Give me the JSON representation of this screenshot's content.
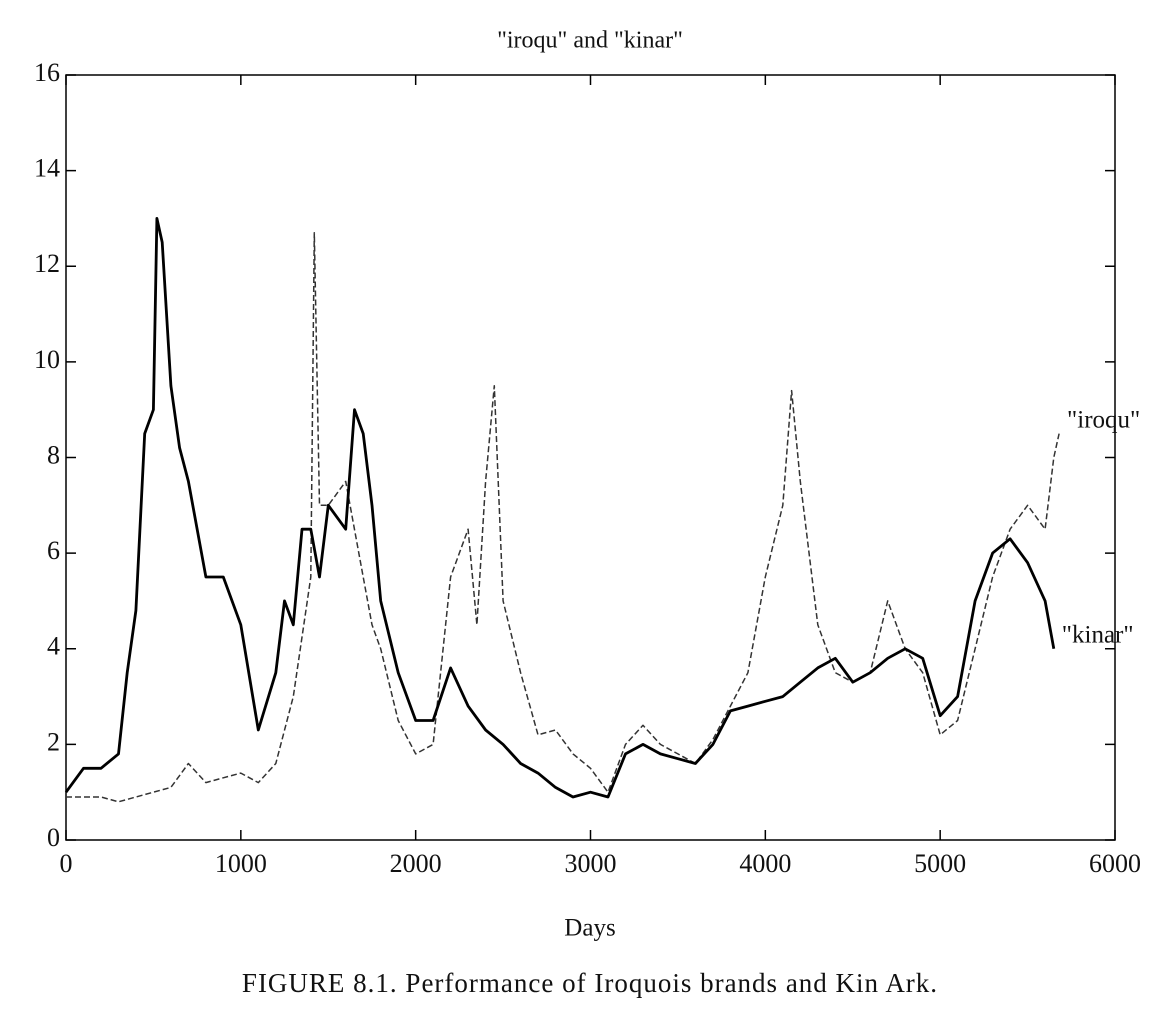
{
  "chart_data": {
    "type": "line",
    "title": "\"iroqu\" and \"kinar\"",
    "xlabel": "Days",
    "caption": "FIGURE 8.1. Performance of Iroquois brands and Kin Ark.",
    "xlim": [
      0,
      6000
    ],
    "xticks": [
      0,
      1000,
      2000,
      3000,
      4000,
      5000,
      6000
    ],
    "ylim": [
      0,
      16
    ],
    "yticks": [
      0,
      2,
      4,
      6,
      8,
      10,
      12,
      14,
      16
    ],
    "grid": false,
    "series": [
      {
        "name": "\"iroqu\"",
        "color": "#333333",
        "line_style": "dashed",
        "x": [
          0,
          100,
          200,
          300,
          400,
          500,
          600,
          700,
          800,
          900,
          1000,
          1100,
          1200,
          1300,
          1400,
          1420,
          1450,
          1500,
          1600,
          1700,
          1750,
          1800,
          1900,
          2000,
          2100,
          2200,
          2300,
          2350,
          2400,
          2450,
          2500,
          2600,
          2700,
          2800,
          2900,
          3000,
          3100,
          3200,
          3300,
          3400,
          3500,
          3600,
          3700,
          3800,
          3900,
          4000,
          4100,
          4150,
          4200,
          4300,
          4400,
          4500,
          4600,
          4700,
          4800,
          4900,
          5000,
          5100,
          5200,
          5300,
          5400,
          5500,
          5600,
          5650,
          5680
        ],
        "values": [
          0.9,
          0.9,
          0.9,
          0.8,
          0.9,
          1.0,
          1.1,
          1.6,
          1.2,
          1.3,
          1.4,
          1.2,
          1.6,
          3.0,
          5.5,
          12.7,
          7.0,
          7.0,
          7.5,
          5.5,
          4.5,
          4.0,
          2.5,
          1.8,
          2.0,
          5.5,
          6.5,
          4.5,
          7.5,
          9.5,
          5.0,
          3.5,
          2.2,
          2.3,
          1.8,
          1.5,
          1.0,
          2.0,
          2.4,
          2.0,
          1.8,
          1.6,
          2.1,
          2.8,
          3.5,
          5.5,
          7.0,
          9.4,
          7.5,
          4.5,
          3.5,
          3.3,
          3.5,
          5.0,
          4.0,
          3.5,
          2.2,
          2.5,
          4.0,
          5.5,
          6.5,
          7.0,
          6.5,
          8.0,
          8.5
        ]
      },
      {
        "name": "\"kinar\"",
        "color": "#000000",
        "line_style": "solid",
        "x": [
          0,
          100,
          200,
          300,
          350,
          400,
          450,
          500,
          520,
          550,
          600,
          650,
          700,
          800,
          900,
          1000,
          1100,
          1200,
          1250,
          1300,
          1350,
          1400,
          1450,
          1500,
          1600,
          1650,
          1700,
          1750,
          1800,
          1900,
          2000,
          2100,
          2200,
          2300,
          2400,
          2500,
          2600,
          2700,
          2800,
          2900,
          3000,
          3100,
          3200,
          3300,
          3400,
          3500,
          3600,
          3700,
          3800,
          3900,
          4000,
          4100,
          4200,
          4300,
          4400,
          4500,
          4600,
          4700,
          4800,
          4900,
          5000,
          5100,
          5200,
          5300,
          5400,
          5500,
          5600,
          5650
        ],
        "values": [
          1.0,
          1.5,
          1.5,
          1.8,
          3.5,
          4.8,
          8.5,
          9.0,
          13.0,
          12.5,
          9.5,
          8.2,
          7.5,
          5.5,
          5.5,
          4.5,
          2.3,
          3.5,
          5.0,
          4.5,
          6.5,
          6.5,
          5.5,
          7.0,
          6.5,
          9.0,
          8.5,
          7.0,
          5.0,
          3.5,
          2.5,
          2.5,
          3.6,
          2.8,
          2.3,
          2.0,
          1.6,
          1.4,
          1.1,
          0.9,
          1.0,
          0.9,
          1.8,
          2.0,
          1.8,
          1.7,
          1.6,
          2.0,
          2.7,
          2.8,
          2.9,
          3.0,
          3.3,
          3.6,
          3.8,
          3.3,
          3.5,
          3.8,
          4.0,
          3.8,
          2.6,
          3.0,
          5.0,
          6.0,
          6.3,
          5.8,
          5.0,
          4.0
        ]
      }
    ]
  }
}
